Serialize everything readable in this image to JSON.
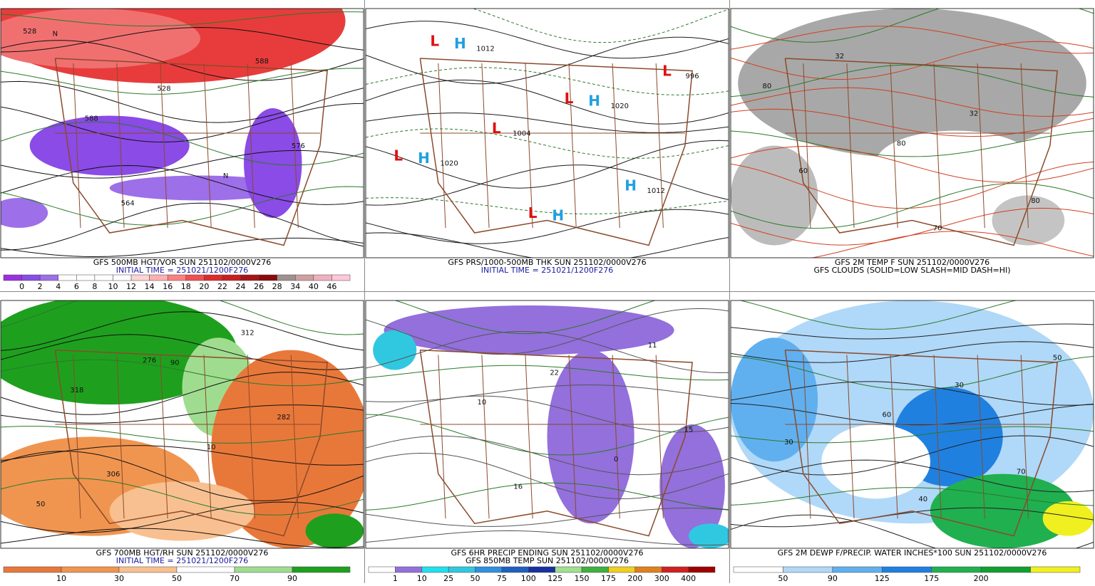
{
  "panels": [
    {
      "captions": [
        {
          "text": "GFS 500MB HGT/VOR SUN 251102/0000V276",
          "color": "#000000"
        },
        {
          "text": "INITIAL TIME = 251021/1200F276",
          "color": "#1a1aa0"
        }
      ],
      "map_labels": [
        "528",
        "528",
        "576",
        "564",
        "588",
        "588",
        "N",
        "N"
      ],
      "colorbar": {
        "colors": [
          "#9b30e0",
          "#8a4be6",
          "#9d6fe8",
          "#ffffff",
          "#ffffff",
          "#ffffff",
          "#ffffff",
          "#ffd4d4",
          "#ffb0b0",
          "#ff8080",
          "#f05050",
          "#e02a2a",
          "#c81e1e",
          "#a81414",
          "#8c0a0a",
          "#a09090",
          "#d0a0a0",
          "#f0b0c0",
          "#ffc8d8"
        ],
        "labels": [
          "0",
          "2",
          "4",
          "6",
          "8",
          "10",
          "12",
          "14",
          "16",
          "18",
          "20",
          "22",
          "24",
          "26",
          "28",
          "34",
          "40",
          "46"
        ]
      }
    },
    {
      "captions": [
        {
          "text": "GFS PRS/1000-500MB THK SUN 251102/0000V276",
          "color": "#000000"
        },
        {
          "text": "INITIAL TIME = 251021/1200F276",
          "color": "#1a1aa0"
        }
      ],
      "map_labels": [
        "L",
        "L",
        "L",
        "L",
        "L",
        "L",
        "H",
        "H",
        "H",
        "H",
        "H",
        "996",
        "1004",
        "1012",
        "1012",
        "1020",
        "1020"
      ]
    },
    {
      "captions": [
        {
          "text": "GFS 2M TEMP F SUN 251102/0000V276",
          "color": "#000000"
        },
        {
          "text": "GFS CLOUDS (SOLID=LOW SLASH=MID DASH=HI)",
          "color": "#000000"
        }
      ],
      "map_labels": [
        "32",
        "32",
        "60",
        "70",
        "80",
        "80",
        "80"
      ]
    },
    {
      "captions": [
        {
          "text": "GFS 700MB HGT/RH SUN 251102/0000V276",
          "color": "#000000"
        },
        {
          "text": "INITIAL TIME = 251021/1200F276",
          "color": "#1a1aa0"
        }
      ],
      "map_labels": [
        "276",
        "282",
        "306",
        "312",
        "318",
        "10",
        "50",
        "90"
      ],
      "colorbar": {
        "colors": [
          "#e8783a",
          "#f09550",
          "#f8c090",
          "#ffffff",
          "#a0dc90",
          "#1ea01e"
        ],
        "labels": [
          "10",
          "30",
          "50",
          "70",
          "90"
        ]
      }
    },
    {
      "captions": [
        {
          "text": "GFS 6HR PRECIP ENDING SUN 251102/0000V276",
          "color": "#000000"
        },
        {
          "text": "GFS 850MB TEMP SUN 251102/0000V276",
          "color": "#000000"
        }
      ],
      "map_labels": [
        "22",
        "15",
        "16",
        "11",
        "10",
        "0"
      ],
      "colorbar": {
        "colors": [
          "#ffffff",
          "#9370db",
          "#20e0f0",
          "#30c8e0",
          "#3090e0",
          "#2060c0",
          "#1830a0",
          "#a0e090",
          "#40b040",
          "#f0d020",
          "#e08020",
          "#d02020",
          "#a00000"
        ],
        "labels": [
          "1",
          "10",
          "25",
          "50",
          "75",
          "100",
          "125",
          "150",
          "175",
          "200",
          "300",
          "400"
        ]
      }
    },
    {
      "captions": [
        {
          "text": "GFS 2M DEWP F/PRECIP. WATER INCHES*100 SUN 251102/0000V276",
          "color": "#000000"
        }
      ],
      "map_labels": [
        "30",
        "30",
        "40",
        "50",
        "60",
        "70"
      ],
      "colorbar": {
        "colors": [
          "#ffffff",
          "#b0d8f8",
          "#60b0f0",
          "#2080e0",
          "#20b050",
          "#10a030",
          "#f0f020"
        ],
        "labels": [
          "50",
          "90",
          "125",
          "175",
          "200"
        ]
      }
    }
  ]
}
